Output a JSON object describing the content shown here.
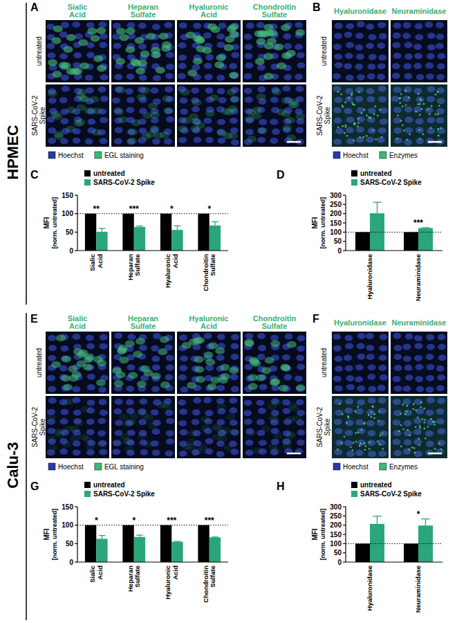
{
  "figure": {
    "sections": [
      {
        "label": "HPMEC"
      },
      {
        "label": "Calu-3"
      }
    ],
    "image_panels": [
      {
        "panel": "A",
        "columns": [
          "Sialic Acid",
          "Heparan Sulfate",
          "Hyaluronic Acid",
          "Chondroitin Sulfate"
        ],
        "rows": [
          "untreated",
          "SARS-CoV-2 Spike"
        ],
        "legend": [
          {
            "label": "Hoechst",
            "color": "#2a3aa8"
          },
          {
            "label": "EGL staining",
            "color": "#3cb878"
          }
        ]
      },
      {
        "panel": "B",
        "columns": [
          "Hyaluronidase",
          "Neuraminidase"
        ],
        "rows": [
          "untreated",
          "SARS-CoV-2 Spike"
        ],
        "legend": [
          {
            "label": "Hoechst",
            "color": "#2a3aa8"
          },
          {
            "label": "Enzymes",
            "color": "#3cb878"
          }
        ]
      },
      {
        "panel": "E",
        "columns": [
          "Sialic Acid",
          "Heparan Sulfate",
          "Hyaluronic Acid",
          "Chondroitin Sulfate"
        ],
        "rows": [
          "untreated",
          "SARS-CoV-2 Spike"
        ],
        "legend": [
          {
            "label": "Hoechst",
            "color": "#2a3aa8"
          },
          {
            "label": "EGL staining",
            "color": "#3cb878"
          }
        ]
      },
      {
        "panel": "F",
        "columns": [
          "Hyaluronidase",
          "Neuraminidase"
        ],
        "rows": [
          "untreated",
          "SARS-CoV-2 Spike"
        ],
        "legend": [
          {
            "label": "Hoechst",
            "color": "#2a3aa8"
          },
          {
            "label": "Enzymes",
            "color": "#3cb878"
          }
        ]
      }
    ]
  },
  "chart_data": [
    {
      "panel": "C",
      "type": "bar",
      "categories": [
        "Sialic Acid",
        "Heparan Sulfate",
        "Hyaluronic Acid",
        "Chondroitin Sulfate"
      ],
      "series": [
        {
          "name": "untreated",
          "color": "#000000",
          "values": [
            100,
            100,
            100,
            100
          ]
        },
        {
          "name": "SARS-CoV-2 Spike",
          "color": "#2aa67a",
          "values": [
            51,
            64,
            56,
            68
          ],
          "errors": [
            9,
            2.5,
            11,
            10
          ]
        }
      ],
      "ylim": [
        0,
        150
      ],
      "yticks": [
        0,
        50,
        100,
        150
      ],
      "y_label": "MFI",
      "y_sublabel": "[norm. untreated]",
      "legend": "top-left",
      "reference": 100,
      "significance": [
        "**",
        "***",
        "*",
        "*"
      ]
    },
    {
      "panel": "D",
      "type": "bar",
      "categories": [
        "Hyaluronidase",
        "Neuraminidase"
      ],
      "series": [
        {
          "name": "untreated",
          "color": "#000000",
          "values": [
            100,
            100
          ]
        },
        {
          "name": "SARS-CoV-2 Spike",
          "color": "#2aa67a",
          "values": [
            202,
            122
          ],
          "errors": [
            60,
            2
          ]
        }
      ],
      "ylim": [
        0,
        300
      ],
      "yticks": [
        0,
        50,
        100,
        150,
        200,
        250,
        300
      ],
      "y_label": "MFI",
      "y_sublabel": "[norm. untreated]",
      "legend": "top-left",
      "reference": 100,
      "significance": [
        null,
        "***"
      ]
    },
    {
      "panel": "G",
      "type": "bar",
      "categories": [
        "Sialic Acid",
        "Heparan Sulfate",
        "Hyaluronic Acid",
        "Chondroitin Sulfate"
      ],
      "series": [
        {
          "name": "untreated",
          "color": "#000000",
          "values": [
            100,
            100,
            100,
            100
          ]
        },
        {
          "name": "SARS-CoV-2 Spike",
          "color": "#2aa67a",
          "values": [
            63,
            68,
            55,
            67
          ],
          "errors": [
            9,
            5,
            1,
            1
          ]
        }
      ],
      "ylim": [
        0,
        150
      ],
      "yticks": [
        0,
        50,
        100,
        150
      ],
      "y_label": "MFI",
      "y_sublabel": "[norm. untreated]",
      "legend": "top-left",
      "reference": 100,
      "significance": [
        "*",
        "*",
        "***",
        "***"
      ]
    },
    {
      "panel": "H",
      "type": "bar",
      "categories": [
        "Hyaluronidase",
        "Neuraminidase"
      ],
      "series": [
        {
          "name": "untreated",
          "color": "#000000",
          "values": [
            100,
            100
          ]
        },
        {
          "name": "SARS-CoV-2 Spike",
          "color": "#2aa67a",
          "values": [
            207,
            198
          ],
          "errors": [
            42,
            36
          ]
        }
      ],
      "ylim": [
        0,
        300
      ],
      "yticks": [
        0,
        50,
        100,
        150,
        200,
        250,
        300
      ],
      "y_label": "MFI",
      "y_sublabel": "[norm. untreated]",
      "legend": "top-left",
      "reference": 100,
      "significance": [
        null,
        "*"
      ]
    }
  ]
}
